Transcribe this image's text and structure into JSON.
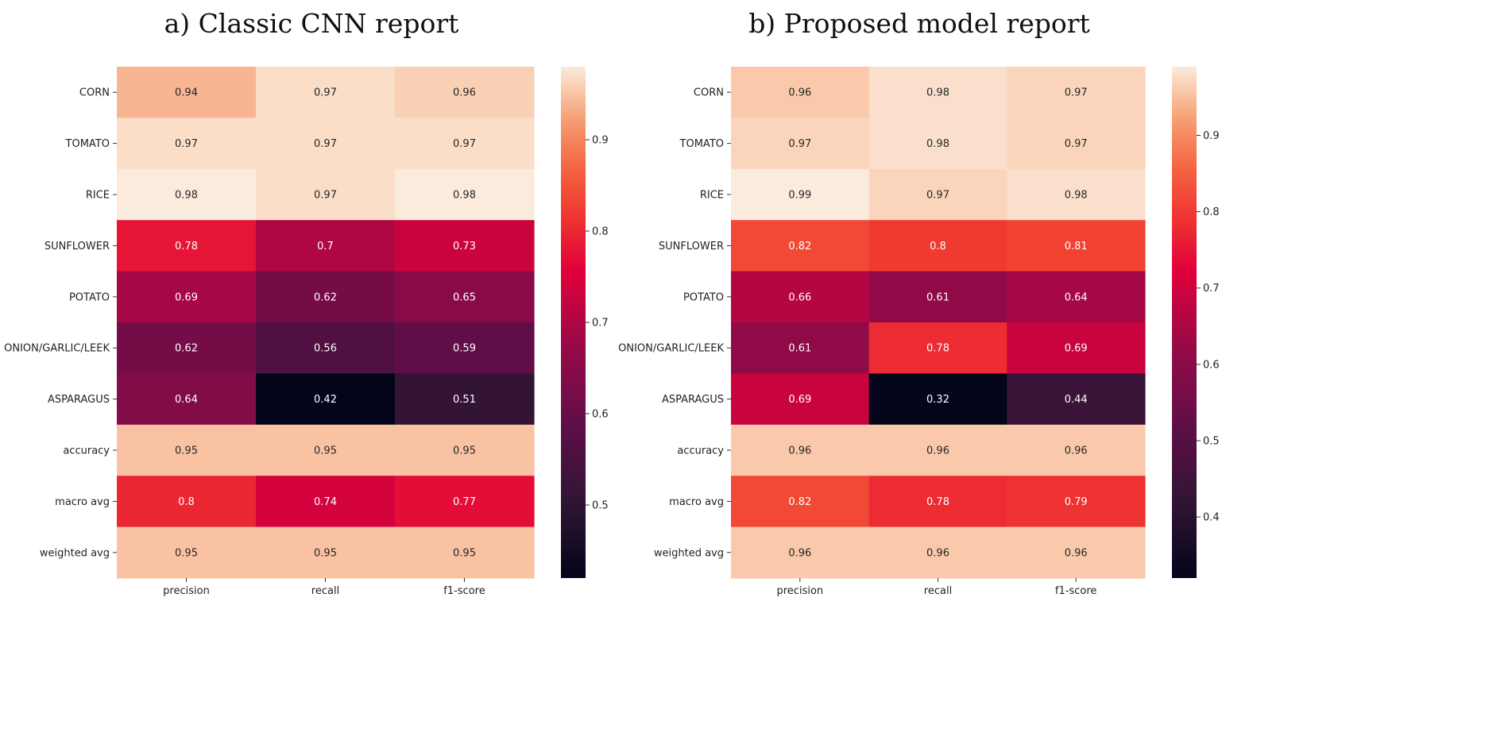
{
  "chart_data": [
    {
      "type": "heatmap",
      "title": "a) Classic CNN report",
      "rows": [
        "CORN",
        "TOMATO",
        "RICE",
        "SUNFLOWER",
        "POTATO",
        "ONION/GARLIC/LEEK",
        "ASPARAGUS",
        "accuracy",
        "macro avg",
        "weighted avg"
      ],
      "columns": [
        "precision",
        "recall",
        "f1-score"
      ],
      "values": [
        [
          0.94,
          0.97,
          0.96
        ],
        [
          0.97,
          0.97,
          0.97
        ],
        [
          0.98,
          0.97,
          0.98
        ],
        [
          0.78,
          0.7,
          0.73
        ],
        [
          0.69,
          0.62,
          0.65
        ],
        [
          0.62,
          0.56,
          0.59
        ],
        [
          0.64,
          0.42,
          0.51
        ],
        [
          0.95,
          0.95,
          0.95
        ],
        [
          0.8,
          0.74,
          0.77
        ],
        [
          0.95,
          0.95,
          0.95
        ]
      ],
      "labels": [
        [
          "0.94",
          "0.97",
          "0.96"
        ],
        [
          "0.97",
          "0.97",
          "0.97"
        ],
        [
          "0.98",
          "0.97",
          "0.98"
        ],
        [
          "0.78",
          "0.7",
          "0.73"
        ],
        [
          "0.69",
          "0.62",
          "0.65"
        ],
        [
          "0.62",
          "0.56",
          "0.59"
        ],
        [
          "0.64",
          "0.42",
          "0.51"
        ],
        [
          "0.95",
          "0.95",
          "0.95"
        ],
        [
          "0.8",
          "0.74",
          "0.77"
        ],
        [
          "0.95",
          "0.95",
          "0.95"
        ]
      ],
      "colorbar": {
        "colormap": "rocket",
        "range": [
          0.42,
          0.98
        ],
        "ticks": [
          0.5,
          0.6,
          0.7,
          0.8,
          0.9
        ],
        "tick_labels": [
          "0.5",
          "0.6",
          "0.7",
          "0.8",
          "0.9"
        ]
      }
    },
    {
      "type": "heatmap",
      "title": "b) Proposed model report",
      "rows": [
        "CORN",
        "TOMATO",
        "RICE",
        "SUNFLOWER",
        "POTATO",
        "ONION/GARLIC/LEEK",
        "ASPARAGUS",
        "accuracy",
        "macro avg",
        "weighted avg"
      ],
      "columns": [
        "precision",
        "recall",
        "f1-score"
      ],
      "values": [
        [
          0.96,
          0.98,
          0.97
        ],
        [
          0.97,
          0.98,
          0.97
        ],
        [
          0.99,
          0.97,
          0.98
        ],
        [
          0.82,
          0.8,
          0.81
        ],
        [
          0.66,
          0.61,
          0.64
        ],
        [
          0.61,
          0.78,
          0.69
        ],
        [
          0.69,
          0.32,
          0.44
        ],
        [
          0.96,
          0.96,
          0.96
        ],
        [
          0.82,
          0.78,
          0.79
        ],
        [
          0.96,
          0.96,
          0.96
        ]
      ],
      "labels": [
        [
          "0.96",
          "0.98",
          "0.97"
        ],
        [
          "0.97",
          "0.98",
          "0.97"
        ],
        [
          "0.99",
          "0.97",
          "0.98"
        ],
        [
          "0.82",
          "0.8",
          "0.81"
        ],
        [
          "0.66",
          "0.61",
          "0.64"
        ],
        [
          "0.61",
          "0.78",
          "0.69"
        ],
        [
          "0.69",
          "0.32",
          "0.44"
        ],
        [
          "0.96",
          "0.96",
          "0.96"
        ],
        [
          "0.82",
          "0.78",
          "0.79"
        ],
        [
          "0.96",
          "0.96",
          "0.96"
        ]
      ],
      "colorbar": {
        "colormap": "rocket",
        "range": [
          0.32,
          0.99
        ],
        "ticks": [
          0.4,
          0.5,
          0.6,
          0.7,
          0.8,
          0.9
        ],
        "tick_labels": [
          "0.4",
          "0.5",
          "0.6",
          "0.7",
          "0.8",
          "0.9"
        ]
      }
    }
  ]
}
